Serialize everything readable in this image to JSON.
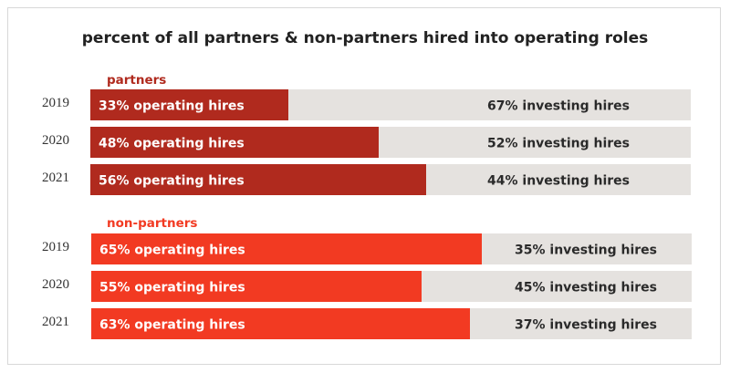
{
  "chart_data": {
    "type": "bar",
    "stacked": true,
    "orientation": "horizontal",
    "title": "percent of all partners & non-partners hired into operating roles",
    "colors": {
      "partners": "#b02a1e",
      "non-partners": "#f23a22",
      "investing": "#e5e2df"
    },
    "groups": [
      {
        "name": "partners",
        "rows": [
          {
            "year": "2019",
            "operating": 33,
            "investing": 67,
            "operating_label": "33% operating hires",
            "investing_label": "67% investing hires"
          },
          {
            "year": "2020",
            "operating": 48,
            "investing": 52,
            "operating_label": "48% operating hires",
            "investing_label": "52% investing hires"
          },
          {
            "year": "2021",
            "operating": 56,
            "investing": 44,
            "operating_label": "56% operating hires",
            "investing_label": "44% investing hires"
          }
        ]
      },
      {
        "name": "non-partners",
        "rows": [
          {
            "year": "2019",
            "operating": 65,
            "investing": 35,
            "operating_label": "65% operating hires",
            "investing_label": "35% investing hires"
          },
          {
            "year": "2020",
            "operating": 55,
            "investing": 45,
            "operating_label": "55% operating hires",
            "investing_label": "45% investing hires"
          },
          {
            "year": "2021",
            "operating": 63,
            "investing": 37,
            "operating_label": "63% operating hires",
            "investing_label": "37% investing hires"
          }
        ]
      }
    ]
  }
}
